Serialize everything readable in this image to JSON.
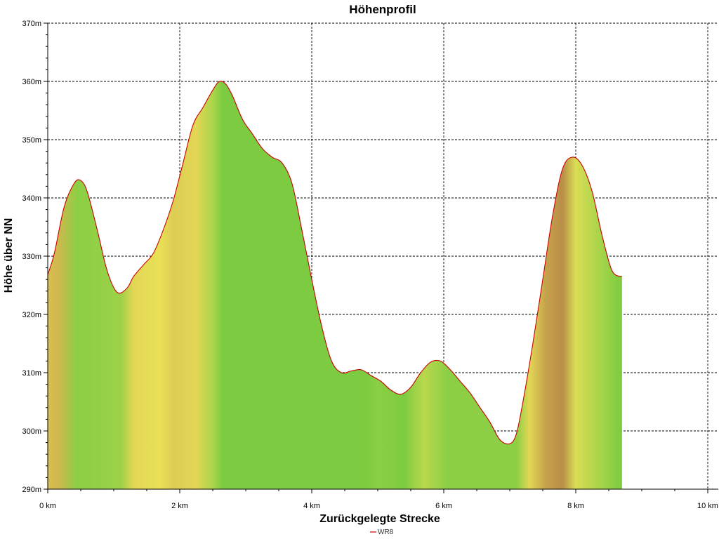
{
  "chart_data": {
    "type": "area",
    "title": "Höhenprofil",
    "xlabel": "Zurückgelegte Strecke",
    "ylabel": "Höhe über NN",
    "xlim": [
      0,
      10
    ],
    "ylim": [
      290,
      370
    ],
    "x_ticks": [
      0,
      2,
      4,
      6,
      8,
      10
    ],
    "x_tick_labels": [
      "0 km",
      "2 km",
      "4 km",
      "6 km",
      "8 km",
      "10 km"
    ],
    "y_ticks": [
      290,
      300,
      310,
      320,
      330,
      340,
      350,
      360,
      370
    ],
    "y_tick_labels": [
      "290m",
      "300m",
      "310m",
      "320m",
      "330m",
      "340m",
      "350m",
      "360m",
      "370m"
    ],
    "grid": true,
    "legend_position": "bottom-center",
    "series": [
      {
        "name": "WR8",
        "line_color": "#cc0000",
        "x": [
          0,
          0.1,
          0.25,
          0.4,
          0.5,
          0.6,
          0.75,
          0.9,
          1.05,
          1.2,
          1.3,
          1.45,
          1.6,
          1.75,
          1.9,
          2.05,
          2.2,
          2.35,
          2.5,
          2.6,
          2.7,
          2.8,
          2.95,
          3.1,
          3.25,
          3.4,
          3.55,
          3.7,
          3.85,
          4.0,
          4.15,
          4.3,
          4.45,
          4.6,
          4.75,
          4.9,
          5.05,
          5.2,
          5.35,
          5.5,
          5.65,
          5.8,
          5.95,
          6.1,
          6.25,
          6.4,
          6.55,
          6.7,
          6.85,
          7.0,
          7.1,
          7.2,
          7.35,
          7.5,
          7.65,
          7.8,
          7.95,
          8.1,
          8.25,
          8.4,
          8.55,
          8.7
        ],
        "y": [
          326.8,
          330.5,
          338.5,
          342.5,
          343.0,
          341.0,
          334.5,
          327.5,
          323.8,
          324.5,
          326.5,
          328.5,
          330.5,
          334.5,
          339.5,
          346.0,
          352.5,
          355.5,
          358.5,
          360.0,
          359.5,
          357.5,
          353.5,
          351.0,
          348.5,
          347.0,
          346.0,
          342.5,
          334.5,
          326.0,
          318.0,
          312.0,
          310.0,
          310.3,
          310.5,
          309.5,
          308.5,
          307.0,
          306.3,
          307.5,
          310.0,
          311.8,
          312.0,
          310.5,
          308.5,
          306.5,
          304.0,
          301.5,
          298.5,
          297.8,
          299.5,
          305.0,
          315.0,
          326.0,
          337.0,
          345.0,
          347.0,
          345.5,
          341.0,
          333.5,
          327.5,
          326.5
        ]
      }
    ],
    "fill_colors": {
      "green": "#33cc33",
      "yellow": "#f2f25a",
      "brown": "#a06040"
    },
    "fill_band_note_x": [
      0,
      0.15,
      0.45,
      1.1,
      1.3,
      1.7,
      1.9,
      2.25,
      2.5,
      2.65,
      4.8,
      5.0,
      5.4,
      5.7,
      6.05,
      7.1,
      7.3,
      7.55,
      7.8,
      8.0,
      8.7
    ],
    "fill_band_levels": [
      0.55,
      0.6,
      0.1,
      0.15,
      0.45,
      0.4,
      0.5,
      0.45,
      0.2,
      0.05,
      0.05,
      0.1,
      0.05,
      0.25,
      0.1,
      0.1,
      0.45,
      0.7,
      0.8,
      0.35,
      0.05
    ]
  }
}
